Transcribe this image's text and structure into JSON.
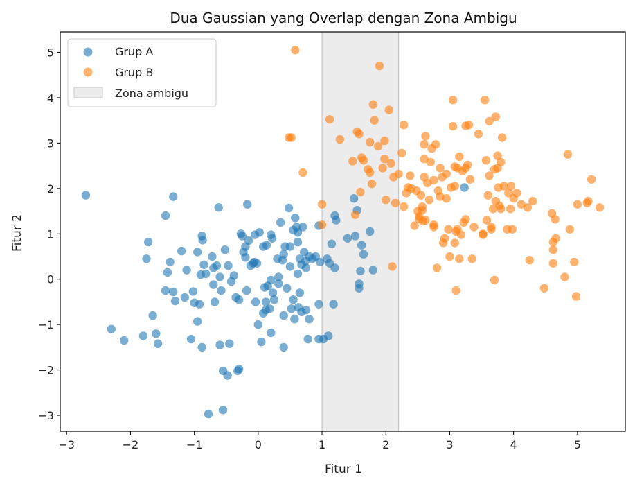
{
  "chart_data": {
    "type": "scatter",
    "title": "Dua Gaussian yang Overlap dengan Zona Ambigu",
    "xlabel": "Fitur 1",
    "ylabel": "Fitur 2",
    "xlim": [
      -3.1,
      5.75
    ],
    "ylim": [
      -3.35,
      5.45
    ],
    "xticks": [
      -3,
      -2,
      -1,
      0,
      1,
      2,
      3,
      4,
      5
    ],
    "yticks": [
      -3,
      -2,
      -1,
      0,
      1,
      2,
      3,
      4,
      5
    ],
    "xtick_labels": [
      "−3",
      "−2",
      "−1",
      "0",
      "1",
      "2",
      "3",
      "4",
      "5"
    ],
    "ytick_labels": [
      "−3",
      "−2",
      "−1",
      "0",
      "1",
      "2",
      "3",
      "4",
      "5"
    ],
    "grid": false,
    "legend_position": "upper-left",
    "ambiguous_zone": {
      "label": "Zona ambigu",
      "x_range": [
        1.0,
        2.2
      ],
      "color": "#d9d9d9"
    },
    "series": [
      {
        "name": "Grup A",
        "color": "#1f77b4",
        "points": [
          [
            -2.7,
            1.85
          ],
          [
            -2.3,
            -1.1
          ],
          [
            -2.1,
            -1.35
          ],
          [
            -1.8,
            -1.25
          ],
          [
            -1.75,
            0.45
          ],
          [
            -1.72,
            0.82
          ],
          [
            -1.65,
            -0.8
          ],
          [
            -1.6,
            -1.2
          ],
          [
            -1.57,
            -1.42
          ],
          [
            -1.45,
            1.4
          ],
          [
            -1.45,
            -0.25
          ],
          [
            -1.42,
            0.15
          ],
          [
            -1.38,
            0.38
          ],
          [
            -1.33,
            1.82
          ],
          [
            -1.33,
            -0.28
          ],
          [
            -1.3,
            -0.48
          ],
          [
            -1.2,
            0.62
          ],
          [
            -1.15,
            -0.4
          ],
          [
            -1.12,
            0.2
          ],
          [
            -1.05,
            -1.32
          ],
          [
            -1.02,
            -0.27
          ],
          [
            -1.0,
            -0.52
          ],
          [
            -0.95,
            0.6
          ],
          [
            -0.95,
            -0.93
          ],
          [
            -0.92,
            -0.55
          ],
          [
            -0.9,
            0.1
          ],
          [
            -0.88,
            0.95
          ],
          [
            -0.87,
            0.86
          ],
          [
            -0.88,
            -1.5
          ],
          [
            -0.85,
            0.32
          ],
          [
            -0.82,
            0.12
          ],
          [
            -0.78,
            -2.97
          ],
          [
            -0.72,
            0.5
          ],
          [
            -0.7,
            -0.12
          ],
          [
            -0.7,
            0.25
          ],
          [
            -0.68,
            -0.5
          ],
          [
            -0.65,
            0.3
          ],
          [
            -0.62,
            1.58
          ],
          [
            -0.6,
            0.05
          ],
          [
            -0.6,
            -1.45
          ],
          [
            -0.58,
            -0.25
          ],
          [
            -0.55,
            -2.88
          ],
          [
            -0.55,
            -2.02
          ],
          [
            -0.52,
            0.65
          ],
          [
            -0.48,
            -2.12
          ],
          [
            -0.47,
            0.3
          ],
          [
            -0.45,
            -1.42
          ],
          [
            -0.42,
            -0.05
          ],
          [
            -0.38,
            0.08
          ],
          [
            -0.35,
            -0.4
          ],
          [
            -0.32,
            -2.02
          ],
          [
            -0.3,
            -1.98
          ],
          [
            -0.3,
            -0.45
          ],
          [
            -0.27,
            1.0
          ],
          [
            -0.25,
            0.95
          ],
          [
            -0.23,
            0.6
          ],
          [
            -0.2,
            0.72
          ],
          [
            -0.2,
            0.48
          ],
          [
            -0.18,
            -0.25
          ],
          [
            -0.17,
            1.65
          ],
          [
            -0.15,
            0.85
          ],
          [
            -0.12,
            0.3
          ],
          [
            -0.08,
            0.35
          ],
          [
            -0.06,
            0.38
          ],
          [
            -0.05,
            0.98
          ],
          [
            -0.04,
            -0.5
          ],
          [
            -0.02,
            0.35
          ],
          [
            0.0,
            -1.0
          ],
          [
            0.02,
            1.03
          ],
          [
            0.05,
            -1.38
          ],
          [
            0.08,
            0.72
          ],
          [
            0.08,
            -0.75
          ],
          [
            0.1,
            -0.18
          ],
          [
            0.12,
            -0.5
          ],
          [
            0.12,
            -0.68
          ],
          [
            0.13,
            0.75
          ],
          [
            0.15,
            -0.15
          ],
          [
            0.18,
            -0.65
          ],
          [
            0.2,
            0.98
          ],
          [
            0.2,
            -0.02
          ],
          [
            0.2,
            -1.18
          ],
          [
            0.22,
            0.9
          ],
          [
            0.23,
            -0.3
          ],
          [
            0.25,
            -0.45
          ],
          [
            0.3,
            0.45
          ],
          [
            0.32,
            -0.1
          ],
          [
            0.32,
            0.05
          ],
          [
            0.35,
            1.25
          ],
          [
            0.38,
            0.42
          ],
          [
            0.4,
            0.55
          ],
          [
            0.4,
            -0.8
          ],
          [
            0.4,
            -1.5
          ],
          [
            0.42,
            0.72
          ],
          [
            0.45,
            -0.2
          ],
          [
            0.48,
            1.57
          ],
          [
            0.5,
            0.72
          ],
          [
            0.5,
            0.28
          ],
          [
            0.52,
            -0.65
          ],
          [
            0.55,
            1.08
          ],
          [
            0.55,
            -0.45
          ],
          [
            0.57,
            -0.88
          ],
          [
            0.58,
            1.35
          ],
          [
            0.6,
            1.15
          ],
          [
            0.62,
            0.82
          ],
          [
            0.62,
            0.12
          ],
          [
            0.62,
            1.03
          ],
          [
            0.63,
            -0.62
          ],
          [
            0.65,
            -0.3
          ],
          [
            0.65,
            0.45
          ],
          [
            0.68,
            -0.72
          ],
          [
            0.68,
            0.32
          ],
          [
            0.7,
            1.15
          ],
          [
            0.72,
            0.6
          ],
          [
            0.74,
            0.4
          ],
          [
            0.75,
            0.25
          ],
          [
            0.75,
            -0.68
          ],
          [
            0.78,
            -1.32
          ],
          [
            0.8,
            0.5
          ],
          [
            0.8,
            -0.88
          ],
          [
            0.85,
            0.45
          ],
          [
            0.9,
            0.5
          ],
          [
            0.95,
            -0.55
          ],
          [
            0.95,
            -1.32
          ],
          [
            0.95,
            1.18
          ],
          [
            0.97,
            0.38
          ],
          [
            1.02,
            -1.32
          ],
          [
            1.08,
            0.45
          ],
          [
            1.1,
            -1.25
          ],
          [
            1.12,
            0.35
          ],
          [
            1.15,
            0.78
          ],
          [
            1.18,
            -0.55
          ],
          [
            1.2,
            1.4
          ],
          [
            1.2,
            0.25
          ],
          [
            1.22,
            1.3
          ],
          [
            1.4,
            0.9
          ],
          [
            1.5,
            1.78
          ],
          [
            1.52,
            0.95
          ],
          [
            1.55,
            1.52
          ],
          [
            1.58,
            -0.2
          ],
          [
            1.6,
            0.18
          ],
          [
            1.62,
            0.75
          ],
          [
            1.65,
            0.55
          ],
          [
            1.75,
            1.05
          ],
          [
            1.8,
            0.2
          ],
          [
            1.58,
            -0.1
          ],
          [
            3.23,
            2.02
          ]
        ]
      },
      {
        "name": "Grup B",
        "color": "#ff7f0e",
        "points": [
          [
            0.58,
            5.05
          ],
          [
            0.48,
            3.12
          ],
          [
            0.52,
            3.12
          ],
          [
            0.7,
            2.35
          ],
          [
            1.0,
            1.2
          ],
          [
            1.0,
            1.65
          ],
          [
            1.12,
            3.52
          ],
          [
            1.28,
            3.08
          ],
          [
            1.48,
            2.6
          ],
          [
            1.52,
            1.42
          ],
          [
            1.55,
            3.25
          ],
          [
            1.58,
            3.2
          ],
          [
            1.6,
            1.92
          ],
          [
            1.62,
            2.68
          ],
          [
            1.65,
            2.62
          ],
          [
            1.72,
            2.42
          ],
          [
            1.75,
            2.35
          ],
          [
            1.75,
            3.02
          ],
          [
            1.78,
            2.1
          ],
          [
            1.8,
            3.85
          ],
          [
            1.82,
            3.5
          ],
          [
            1.88,
            2.93
          ],
          [
            1.9,
            4.7
          ],
          [
            1.95,
            2.45
          ],
          [
            1.98,
            3.05
          ],
          [
            1.98,
            2.65
          ],
          [
            2.0,
            1.75
          ],
          [
            2.05,
            3.73
          ],
          [
            2.08,
            2.55
          ],
          [
            2.1,
            0.28
          ],
          [
            2.12,
            2.25
          ],
          [
            2.15,
            1.68
          ],
          [
            2.2,
            2.32
          ],
          [
            2.25,
            2.78
          ],
          [
            2.28,
            3.4
          ],
          [
            2.28,
            1.6
          ],
          [
            2.32,
            1.9
          ],
          [
            2.35,
            2.02
          ],
          [
            2.38,
            2.28
          ],
          [
            2.4,
            2.0
          ],
          [
            2.45,
            1.18
          ],
          [
            2.48,
            1.95
          ],
          [
            2.5,
            1.5
          ],
          [
            2.52,
            1.33
          ],
          [
            2.52,
            1.38
          ],
          [
            2.55,
            1.85
          ],
          [
            2.57,
            1.6
          ],
          [
            2.57,
            1.52
          ],
          [
            2.58,
            1.28
          ],
          [
            2.6,
            2.97
          ],
          [
            2.6,
            2.65
          ],
          [
            2.6,
            2.25
          ],
          [
            2.62,
            3.15
          ],
          [
            2.62,
            1.3
          ],
          [
            2.65,
            2.12
          ],
          [
            2.68,
            1.75
          ],
          [
            2.7,
            2.58
          ],
          [
            2.72,
            2.88
          ],
          [
            2.75,
            1.2
          ],
          [
            2.75,
            1.15
          ],
          [
            2.75,
            2.18
          ],
          [
            2.78,
            2.97
          ],
          [
            2.8,
            0.25
          ],
          [
            2.82,
            1.95
          ],
          [
            2.85,
            1.82
          ],
          [
            2.88,
            2.25
          ],
          [
            2.9,
            0.8
          ],
          [
            2.92,
            0.9
          ],
          [
            2.95,
            1.78
          ],
          [
            2.95,
            2.32
          ],
          [
            2.98,
            1.1
          ],
          [
            3.0,
            0.5
          ],
          [
            3.02,
            2.02
          ],
          [
            3.05,
            3.95
          ],
          [
            3.08,
            0.8
          ],
          [
            3.08,
            2.05
          ],
          [
            3.1,
            1.05
          ],
          [
            3.1,
            -0.25
          ],
          [
            3.12,
            1.1
          ],
          [
            3.12,
            2.45
          ],
          [
            3.15,
            0.45
          ],
          [
            3.15,
            2.7
          ],
          [
            3.18,
            0.98
          ],
          [
            3.2,
            2.38
          ],
          [
            3.22,
            1.25
          ],
          [
            3.25,
            3.38
          ],
          [
            3.25,
            1.32
          ],
          [
            3.28,
            2.52
          ],
          [
            3.3,
            3.4
          ],
          [
            3.32,
            2.2
          ],
          [
            3.35,
            0.45
          ],
          [
            3.38,
            1.15
          ],
          [
            3.45,
            3.2
          ],
          [
            3.52,
            1.0
          ],
          [
            3.52,
            0.98
          ],
          [
            3.55,
            3.95
          ],
          [
            3.57,
            2.62
          ],
          [
            3.58,
            1.3
          ],
          [
            3.6,
            1.85
          ],
          [
            3.62,
            2.28
          ],
          [
            3.62,
            3.48
          ],
          [
            3.65,
            1.1
          ],
          [
            3.65,
            1.15
          ],
          [
            3.68,
            1.55
          ],
          [
            3.7,
            -0.02
          ],
          [
            3.72,
            1.72
          ],
          [
            3.75,
            2.45
          ],
          [
            3.75,
            2.72
          ],
          [
            3.76,
            2.02
          ],
          [
            3.78,
            1.62
          ],
          [
            3.8,
            2.58
          ],
          [
            3.8,
            1.55
          ],
          [
            3.82,
            3.12
          ],
          [
            3.85,
            2.05
          ],
          [
            3.9,
            1.1
          ],
          [
            3.92,
            1.9
          ],
          [
            3.95,
            1.55
          ],
          [
            3.96,
            2.05
          ],
          [
            3.98,
            1.1
          ],
          [
            4.0,
            1.78
          ],
          [
            4.05,
            1.9
          ],
          [
            4.12,
            1.65
          ],
          [
            4.22,
            1.58
          ],
          [
            4.25,
            0.42
          ],
          [
            4.3,
            1.72
          ],
          [
            4.48,
            -0.2
          ],
          [
            4.6,
            1.45
          ],
          [
            4.62,
            0.82
          ],
          [
            4.62,
            0.65
          ],
          [
            4.62,
            0.35
          ],
          [
            4.65,
            1.32
          ],
          [
            4.66,
            0.9
          ],
          [
            4.8,
            0.05
          ],
          [
            4.85,
            2.75
          ],
          [
            4.88,
            1.1
          ],
          [
            4.95,
            0.38
          ],
          [
            4.98,
            -0.38
          ],
          [
            5.0,
            1.65
          ],
          [
            5.15,
            1.68
          ],
          [
            5.17,
            1.72
          ],
          [
            5.22,
            2.2
          ],
          [
            5.35,
            1.58
          ],
          [
            3.72,
            3.58
          ],
          [
            3.05,
            3.37
          ],
          [
            3.7,
            2.42
          ],
          [
            2.85,
            2.45
          ],
          [
            3.25,
            2.45
          ],
          [
            3.08,
            2.48
          ]
        ]
      }
    ]
  }
}
